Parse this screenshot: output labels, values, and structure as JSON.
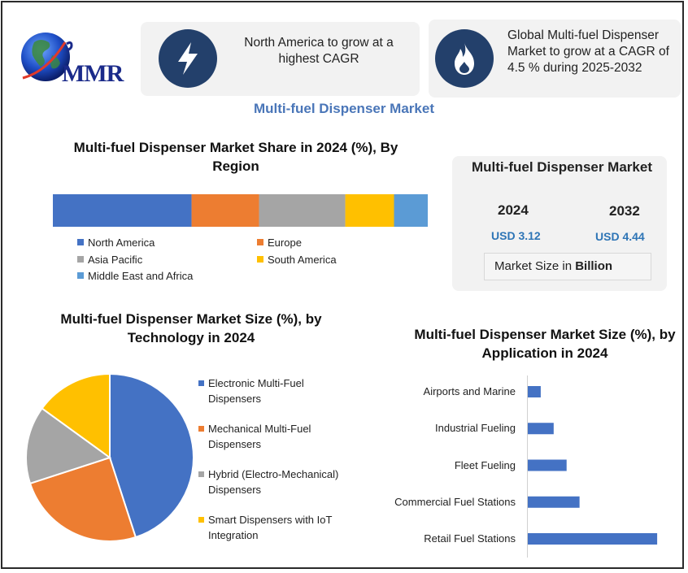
{
  "logo": {
    "text": "MMR"
  },
  "cards": [
    {
      "icon": "lightning-bolt-icon",
      "text": "North America to grow at a highest CAGR"
    },
    {
      "icon": "flame-icon",
      "text": "Global Multi-fuel Dispenser Market to grow at a CAGR of 4.5 % during 2025-2032"
    }
  ],
  "main_title": "Multi-fuel Dispenser Market",
  "market_box": {
    "title": "Multi-fuel Dispenser Market",
    "year1": "2024",
    "value1": "USD 3.12",
    "year2": "2032",
    "value2": "USD 4.44",
    "size_label_prefix": "Market Size in ",
    "size_label_bold": "Billion"
  },
  "colors": {
    "blue": "#4472c4",
    "orange": "#ed7d31",
    "gray": "#a5a5a5",
    "yellow": "#ffc000",
    "lightblue": "#5b9bd5",
    "navy": "#23406b",
    "title_blue": "#4a76b8"
  },
  "chart_data": [
    {
      "type": "bar",
      "orientation": "stacked-horizontal",
      "title": "Multi-fuel Dispenser Market Share in 2024 (%), By Region",
      "categories": [
        "North America",
        "Europe",
        "Asia Pacific",
        "South America",
        "Middle East and Africa"
      ],
      "values": [
        37,
        18,
        23,
        13,
        9
      ],
      "colors": [
        "#4472c4",
        "#ed7d31",
        "#a5a5a5",
        "#ffc000",
        "#5b9bd5"
      ],
      "legend": "bottom"
    },
    {
      "type": "pie",
      "title": "Multi-fuel Dispenser Market Size (%), by Technology in 2024",
      "categories": [
        "Electronic Multi-Fuel Dispensers",
        "Mechanical Multi-Fuel Dispensers",
        "Hybrid (Electro-Mechanical) Dispensers",
        "Smart Dispensers with IoT Integration"
      ],
      "values": [
        45,
        25,
        15,
        15
      ],
      "colors": [
        "#4472c4",
        "#ed7d31",
        "#a5a5a5",
        "#ffc000"
      ],
      "legend": "right"
    },
    {
      "type": "bar",
      "orientation": "horizontal",
      "title": "Multi-fuel Dispenser Market Size (%), by Application in 2024",
      "categories": [
        "Airports and Marine",
        "Industrial Fueling",
        "Fleet Fueling",
        "Commercial Fuel Stations",
        "Retail Fuel Stations"
      ],
      "values": [
        5,
        10,
        15,
        20,
        50
      ],
      "xlim": [
        0,
        55
      ],
      "color": "#4472c4",
      "grid": false
    }
  ]
}
